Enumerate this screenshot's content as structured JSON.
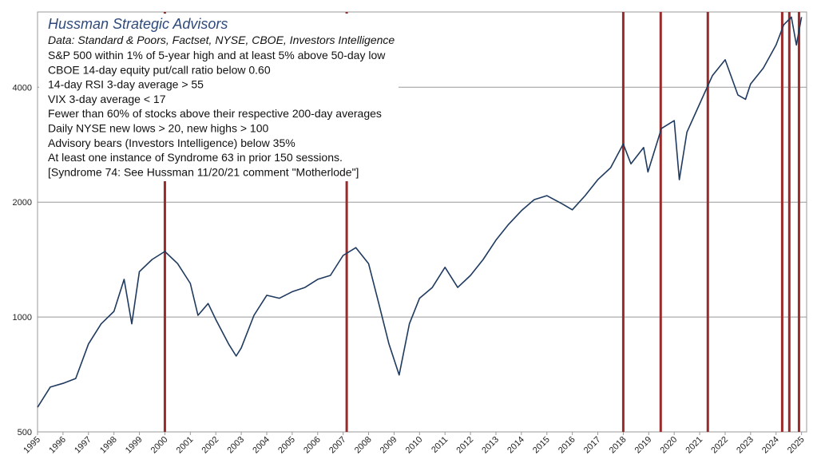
{
  "chart_data": {
    "type": "line",
    "title": "Hussman Strategic Advisors",
    "subtitle": "Data: Standard & Poors, Factset, NYSE, CBOE, Investors Intelligence",
    "annotations": [
      "S&P 500 within 1% of 5-year high and at least 5% above 50-day low",
      "CBOE 14-day equity put/call ratio below 0.60",
      "14-day RSI 3-day average > 55",
      "VIX 3-day average < 17",
      "Fewer than 60% of stocks above their respective 200-day averages",
      "Daily NYSE new lows > 20, new highs > 100",
      "Advisory bears (Investors Intelligence) below 35%",
      "At least one instance of Syndrome 63 in prior 150 sessions.",
      "[Syndrome 74:  See Hussman 11/20/21 comment \"Motherlode\"]"
    ],
    "x": [
      1995.0,
      1995.5,
      1996.0,
      1996.5,
      1997.0,
      1997.5,
      1998.0,
      1998.4,
      1998.7,
      1999.0,
      1999.5,
      2000.0,
      2000.5,
      2001.0,
      2001.3,
      2001.7,
      2002.0,
      2002.5,
      2002.8,
      2003.0,
      2003.5,
      2004.0,
      2004.5,
      2005.0,
      2005.5,
      2006.0,
      2006.5,
      2007.0,
      2007.5,
      2008.0,
      2008.4,
      2008.8,
      2009.2,
      2009.6,
      2010.0,
      2010.5,
      2011.0,
      2011.5,
      2012.0,
      2012.5,
      2013.0,
      2013.5,
      2014.0,
      2014.5,
      2015.0,
      2015.6,
      2016.0,
      2016.5,
      2017.0,
      2017.5,
      2018.0,
      2018.3,
      2018.8,
      2018.97,
      2019.5,
      2020.0,
      2020.2,
      2020.5,
      2021.0,
      2021.5,
      2022.0,
      2022.5,
      2022.8,
      2023.0,
      2023.5,
      2024.0,
      2024.3,
      2024.6,
      2024.8,
      2025.0
    ],
    "series": [
      {
        "name": "S&P 500",
        "color": "#1f3a5f",
        "values": [
          580,
          655,
          670,
          690,
          850,
          960,
          1035,
          1255,
          960,
          1315,
          1415,
          1485,
          1380,
          1225,
          1010,
          1085,
          985,
          850,
          790,
          830,
          1010,
          1140,
          1120,
          1165,
          1195,
          1255,
          1285,
          1450,
          1520,
          1380,
          1085,
          850,
          705,
          960,
          1120,
          1195,
          1350,
          1195,
          1285,
          1415,
          1590,
          1750,
          1900,
          2030,
          2080,
          1980,
          1910,
          2080,
          2290,
          2460,
          2840,
          2520,
          2780,
          2400,
          3120,
          3270,
          2290,
          3050,
          3620,
          4290,
          4720,
          3820,
          3720,
          4080,
          4490,
          5160,
          5830,
          6110,
          5160,
          6110
        ]
      }
    ],
    "signals": [
      2000.0,
      2007.14,
      2018.0,
      2019.47,
      2021.32,
      2024.24,
      2024.52,
      2024.9
    ],
    "signal_color": "#9b2a2a",
    "log_scale": true,
    "grid": true,
    "xlim": [
      1995,
      2025.2
    ],
    "xticks": [
      1995,
      1996,
      1997,
      1998,
      1999,
      2000,
      2001,
      2002,
      2003,
      2004,
      2005,
      2006,
      2007,
      2008,
      2009,
      2010,
      2011,
      2012,
      2013,
      2014,
      2015,
      2016,
      2017,
      2018,
      2019,
      2020,
      2021,
      2022,
      2023,
      2024,
      2025
    ],
    "ylim": [
      500,
      6300
    ],
    "yticks": [
      500,
      1000,
      2000,
      4000
    ]
  }
}
